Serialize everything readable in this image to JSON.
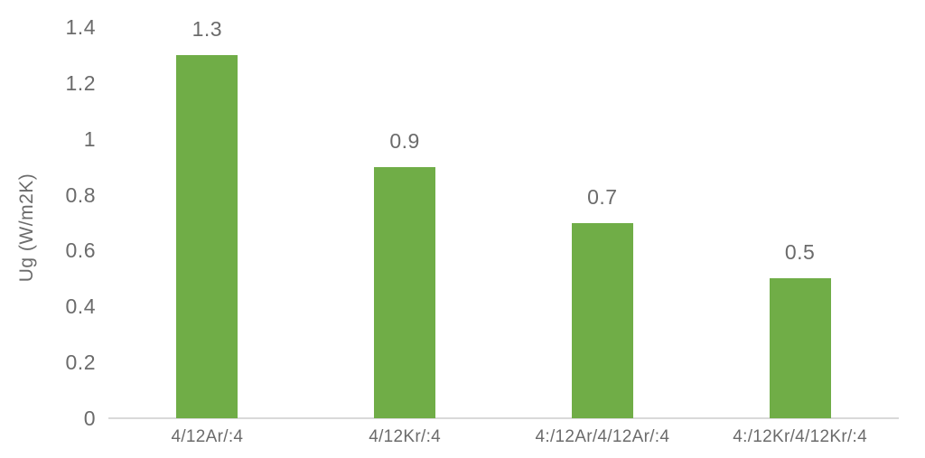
{
  "chart_data": {
    "type": "bar",
    "title": "",
    "categories": [
      "4/12Ar/:4",
      "4/12Kr/:4",
      "4:/12Ar/4/12Ar/:4",
      "4:/12Kr/4/12Kr/:4"
    ],
    "values": [
      1.3,
      0.9,
      0.7,
      0.5
    ],
    "data_labels": [
      "1.3",
      "0.9",
      "0.7",
      "0.5"
    ],
    "xlabel": "",
    "ylabel": "Ug (W/m2K)",
    "ylim": [
      0,
      1.4
    ],
    "yticks": [
      0,
      0.2,
      0.4,
      0.6,
      0.8,
      1,
      1.2,
      1.4
    ],
    "ytick_labels": [
      "0",
      "0.2",
      "0.4",
      "0.6",
      "0.8",
      "1",
      "1.2",
      "1.4"
    ],
    "grid": false,
    "legend": "none",
    "bar_color": "#70AD47",
    "axis_line_color": "#D9D9D9",
    "text_color": "#6B6B6B",
    "background": "#FFFFFF"
  }
}
